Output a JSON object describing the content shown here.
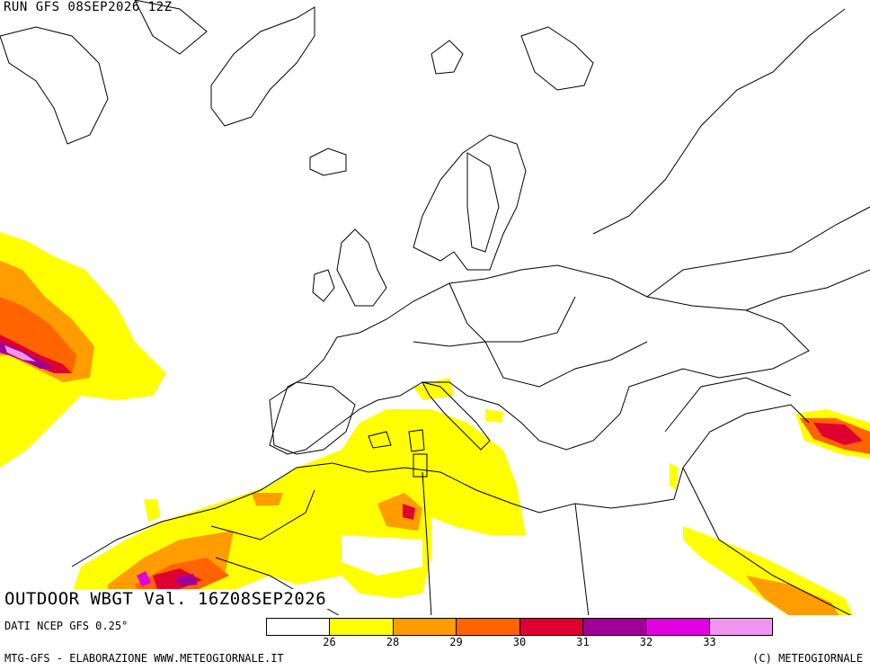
{
  "header": {
    "run_title": "RUN GFS 08SEP2026 12Z"
  },
  "map": {
    "product_title": "OUTDOOR WBGT Val. 16Z08SEP2026",
    "region": "Europe / North Africa / Middle East",
    "outline_color": "#000000",
    "background_color": "#ffffff"
  },
  "legend": {
    "colors": [
      "#ffffff",
      "#ffff00",
      "#ff9c00",
      "#ff6400",
      "#e00030",
      "#a00096",
      "#e000e0",
      "#f096f0"
    ],
    "labels": [
      "26",
      "28",
      "29",
      "30",
      "31",
      "32",
      "33"
    ]
  },
  "footer": {
    "data_source": "DATI NCEP GFS 0.25°",
    "credit_left": "MTG-GFS - ELABORAZIONE WWW.METEOGIORNALE.IT",
    "credit_right": "(C) METEOGIORNALE"
  }
}
